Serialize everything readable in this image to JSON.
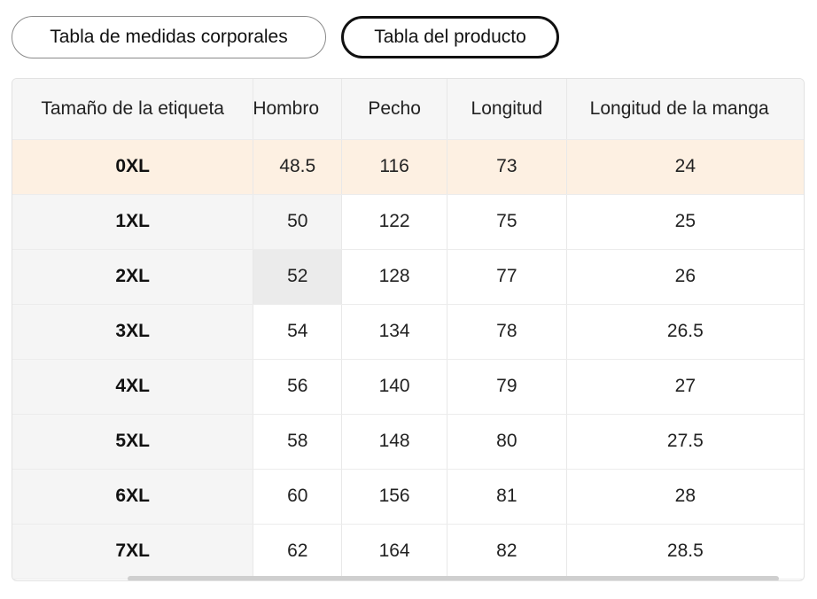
{
  "tabs": [
    {
      "label": "Tabla de medidas corporales",
      "active": false
    },
    {
      "label": "Tabla del producto",
      "active": true
    }
  ],
  "table": {
    "headers": [
      "Tamaño de la etiqueta",
      "Hombro",
      "Pecho",
      "Longitud",
      "Longitud de la manga"
    ],
    "rows": [
      [
        "0XL",
        "48.5",
        "116",
        "73",
        "24"
      ],
      [
        "1XL",
        "50",
        "122",
        "75",
        "25"
      ],
      [
        "2XL",
        "52",
        "128",
        "77",
        "26"
      ],
      [
        "3XL",
        "54",
        "134",
        "78",
        "26.5"
      ],
      [
        "4XL",
        "56",
        "140",
        "79",
        "27"
      ],
      [
        "5XL",
        "58",
        "148",
        "80",
        "27.5"
      ],
      [
        "6XL",
        "60",
        "156",
        "81",
        "28"
      ],
      [
        "7XL",
        "62",
        "164",
        "82",
        "28.5"
      ]
    ]
  },
  "colors": {
    "highlight_row": "#fdf0e2",
    "header_bg": "#f6f6f6",
    "active_tab_border": "#111111"
  }
}
